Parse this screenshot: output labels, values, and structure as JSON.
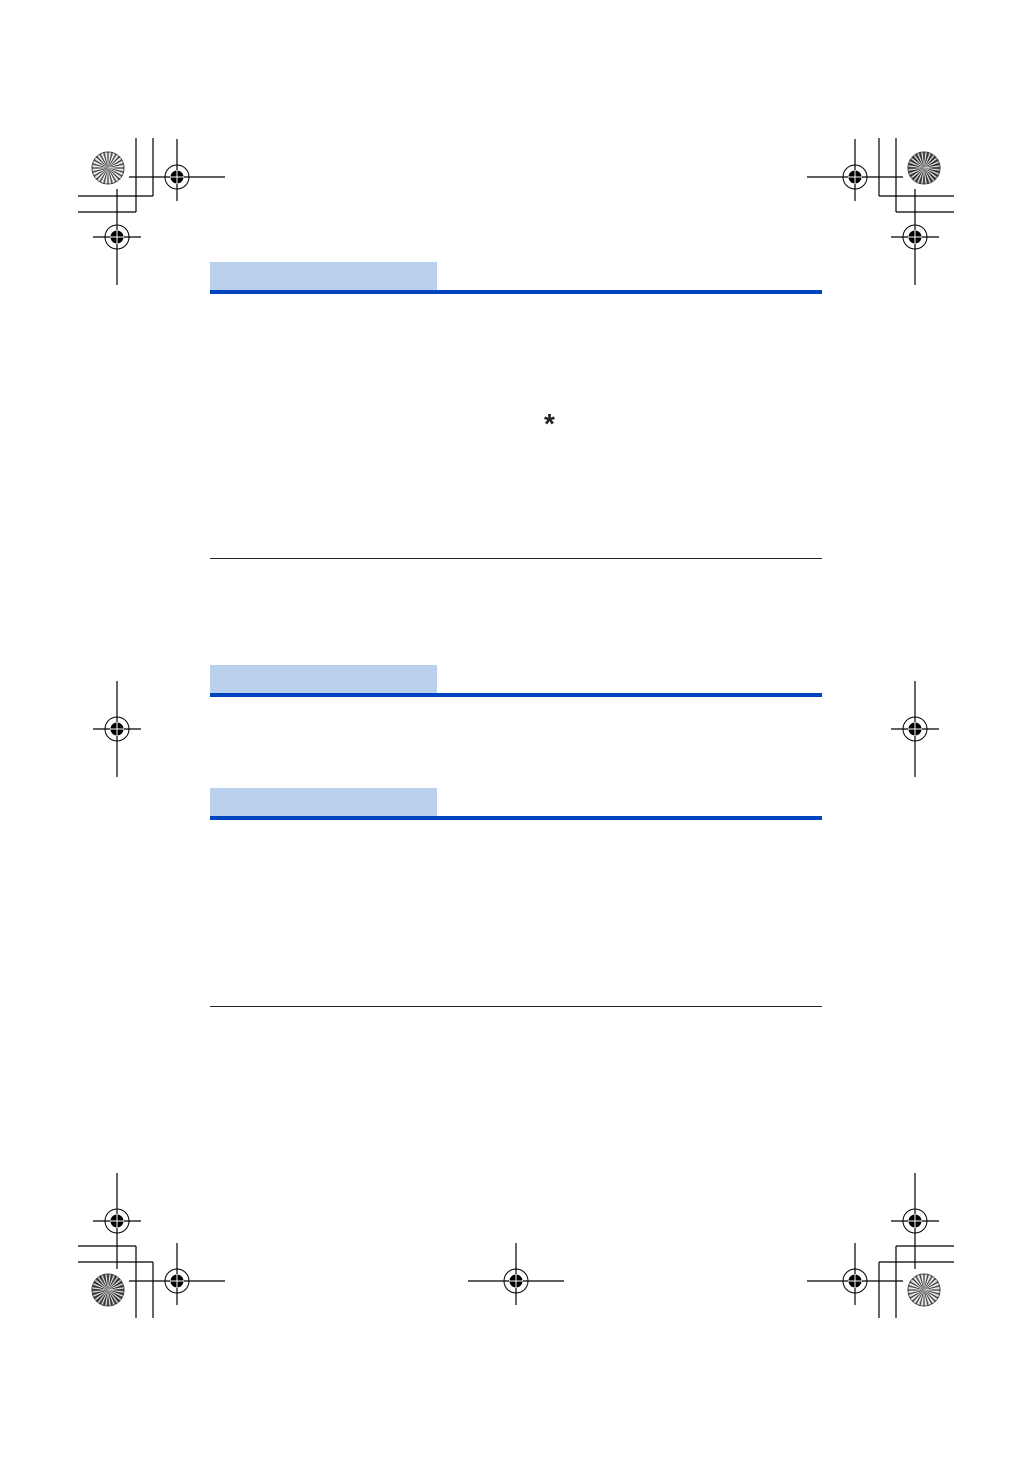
{
  "page": {
    "note_marker": "*",
    "colors": {
      "header_tab": "#b9d0ef",
      "header_rule": "#0044c0",
      "marks": "#000000"
    },
    "icons": [
      "registration-mark-icon",
      "color-starburst-icon"
    ]
  }
}
